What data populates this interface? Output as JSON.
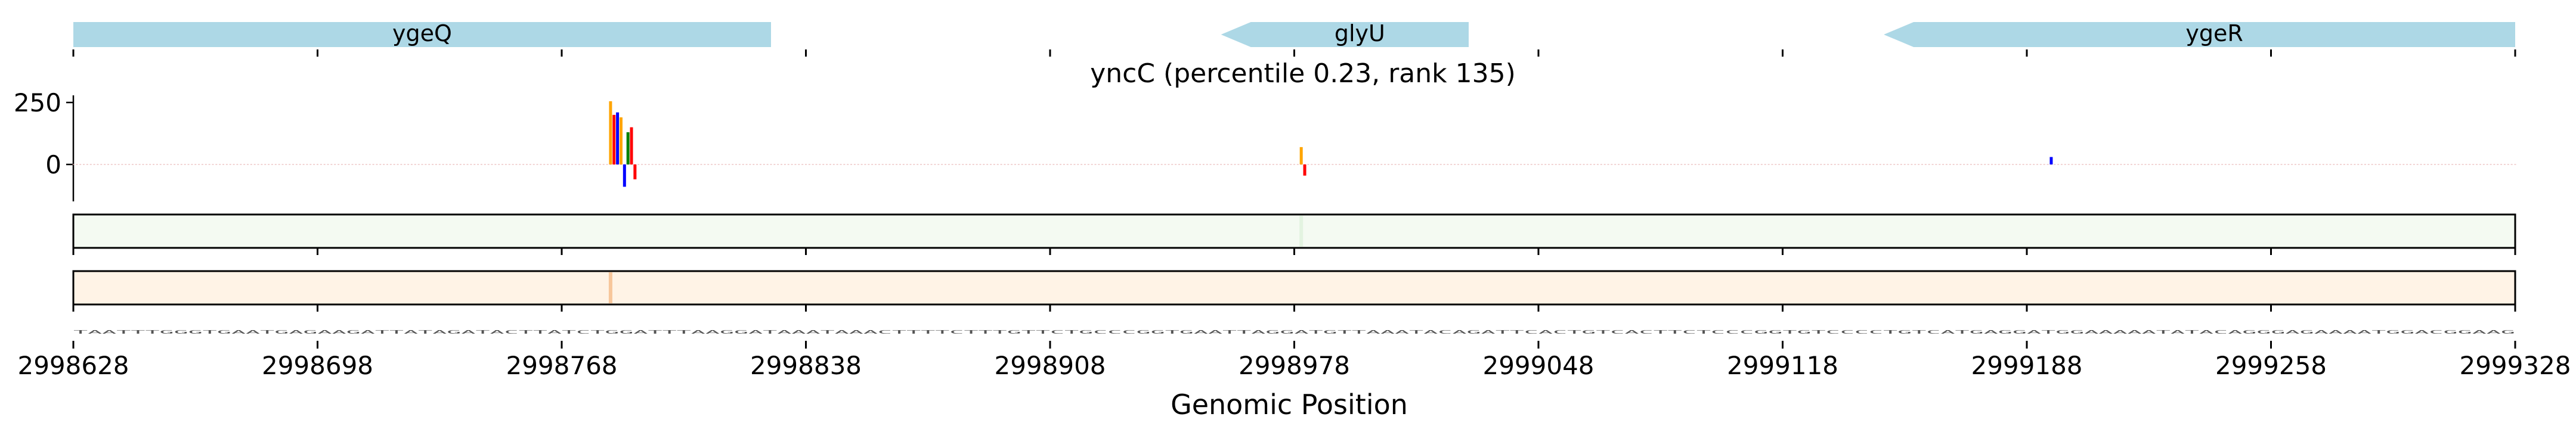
{
  "chart_data": {
    "type": "genome-track",
    "title": "yncC (percentile 0.23, rank 135)",
    "xlabel": "Genomic Position",
    "xlim": [
      2998628,
      2999328
    ],
    "x_ticks": [
      "2998628",
      "2998698",
      "2998768",
      "2998838",
      "2998908",
      "2998978",
      "2999048",
      "2999118",
      "2999188",
      "2999258",
      "2999328"
    ],
    "ylim": [
      -150,
      300
    ],
    "y_ticks": [
      "250",
      "0"
    ],
    "genes": [
      {
        "name": "ygeQ",
        "start": 2998628,
        "end": 2998828,
        "strand": "+"
      },
      {
        "name": "glyU",
        "start": 2998957,
        "end": 2999028,
        "strand": "-"
      },
      {
        "name": "ygeR",
        "start": 2999147,
        "end": 2999328,
        "strand": "-"
      }
    ],
    "series": [
      {
        "values_at": [
          {
            "x": 2998782,
            "a": 0,
            "c": 0,
            "g": 255,
            "t": 0
          },
          {
            "x": 2998783,
            "a": 0,
            "c": 0,
            "g": 0,
            "t": 200
          },
          {
            "x": 2998784,
            "a": 0,
            "c": 210,
            "g": 0,
            "t": 0
          },
          {
            "x": 2998785,
            "a": 0,
            "c": 0,
            "g": 190,
            "t": 0
          },
          {
            "x": 2998786,
            "a": 0,
            "c": -90,
            "g": 0,
            "t": 0
          },
          {
            "x": 2998787,
            "a": 130,
            "c": 0,
            "g": 0,
            "t": 0
          },
          {
            "x": 2998788,
            "a": 0,
            "c": 0,
            "g": 0,
            "t": 150
          },
          {
            "x": 2998789,
            "a": 0,
            "c": 0,
            "g": 0,
            "t": -60
          },
          {
            "x": 2998980,
            "a": 0,
            "c": 0,
            "g": 70,
            "t": 0
          },
          {
            "x": 2998981,
            "a": 0,
            "c": 0,
            "g": 0,
            "t": -45
          },
          {
            "x": 2999195,
            "a": 0,
            "c": 30,
            "g": 0,
            "t": 0
          }
        ]
      }
    ],
    "heatmap_strip_1": {
      "color": "green",
      "max_intensity_at": 2998980
    },
    "heatmap_strip_2": {
      "color": "orange",
      "max_intensity_at": 2998782
    },
    "sequence_row": "TAATTTGGGTGAATGAGAAGATTATAGATACTTATCTGGATTTAAGGATAAATAAACTTTTCTTTGTTCTGCCCGGTGAATTAGGATGTTAAATACAGATTCACTGTCACTTCTCCCGGTGTCCCCTGTCATGAGGATGGAAAAATATACAGGGAGAAAATGGACGGAAG"
  }
}
